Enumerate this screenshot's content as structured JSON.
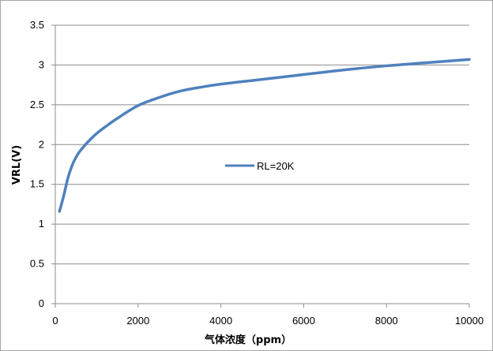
{
  "chart_data": {
    "type": "line",
    "xlabel": "气体浓度（ppm）",
    "ylabel": "VRL(V)",
    "xlim": [
      0,
      10000
    ],
    "ylim": [
      0,
      3.5
    ],
    "x_ticks": [
      "0",
      "2000",
      "4000",
      "6000",
      "8000",
      "10000"
    ],
    "y_ticks": [
      "0",
      "0.5",
      "1",
      "1.5",
      "2",
      "2.5",
      "3",
      "3.5"
    ],
    "grid": "horizontal",
    "legend_position": "center",
    "series": [
      {
        "name": "RL=20K",
        "color": "#4f81bd",
        "x": [
          100,
          200,
          300,
          400,
          500,
          600,
          800,
          1000,
          1200,
          1500,
          2000,
          2500,
          3000,
          3500,
          4000,
          5000,
          6000,
          7000,
          8000,
          9000,
          10000
        ],
        "y": [
          1.16,
          1.35,
          1.57,
          1.73,
          1.84,
          1.92,
          2.04,
          2.14,
          2.22,
          2.33,
          2.49,
          2.59,
          2.67,
          2.72,
          2.76,
          2.82,
          2.88,
          2.94,
          2.99,
          3.03,
          3.07
        ]
      }
    ]
  }
}
